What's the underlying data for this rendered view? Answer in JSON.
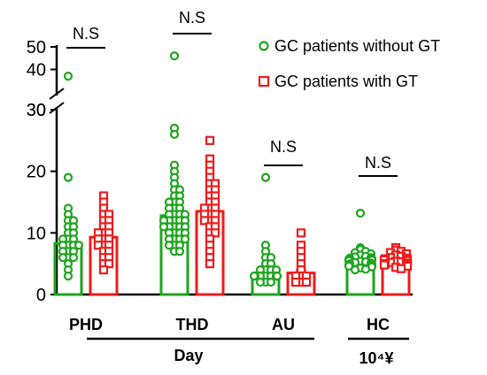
{
  "colors": {
    "without": "#1fa51f",
    "with": "#ee1c1c",
    "axis": "#000000"
  },
  "chart_data": {
    "type": "bar",
    "categories": [
      "PHD",
      "THD",
      "AU",
      "HC"
    ],
    "group_labels": [
      "Day",
      "10⁴¥"
    ],
    "legend": [
      "GC patients without GT",
      "GC patients with GT"
    ],
    "y_ticks_lower": [
      "0",
      "10",
      "20",
      "30"
    ],
    "y_ticks_upper": [
      "30",
      "40",
      "50"
    ],
    "ylim_lower": [
      0,
      30
    ],
    "ylim_upper": [
      30,
      50
    ],
    "axis_break": true,
    "significance": [
      "N.S",
      "N.S",
      "N.S",
      "N.S"
    ],
    "series": [
      {
        "name": "GC patients without GT",
        "means": [
          8.3,
          12.8,
          3.3,
          5.4
        ],
        "points": [
          [
            37,
            19,
            14,
            13,
            12,
            12,
            11,
            11,
            10,
            10,
            9,
            9,
            9,
            8,
            8,
            8,
            8,
            7,
            7,
            7,
            6,
            6,
            6,
            5,
            4,
            3
          ],
          [
            46,
            27,
            26,
            21,
            20,
            19,
            18,
            17,
            17,
            16,
            16,
            15,
            15,
            15,
            14,
            14,
            14,
            13,
            13,
            13,
            13,
            12,
            12,
            12,
            12,
            12,
            11,
            11,
            11,
            11,
            11,
            10,
            10,
            10,
            10,
            9,
            9,
            9,
            9,
            8,
            8,
            8,
            7,
            7
          ],
          [
            19,
            8,
            7,
            6,
            6,
            5,
            5,
            4,
            4,
            4,
            4,
            3,
            3,
            3,
            3,
            3,
            3,
            3,
            3,
            2,
            2,
            2
          ],
          [
            13.2,
            7.6,
            7.3,
            7,
            6.8,
            6.6,
            6.4,
            6.2,
            6.1,
            6,
            5.9,
            5.8,
            5.7,
            5.6,
            5.5,
            5.4,
            5.3,
            5.2,
            5.1,
            5,
            4.9,
            4.8,
            4.7,
            4.6,
            4.5,
            4.3,
            4.1,
            4
          ]
        ]
      },
      {
        "name": "GC patients with GT",
        "means": [
          9.3,
          13.5,
          3.5,
          5.6
        ],
        "points": [
          [
            16,
            15,
            14,
            13,
            13,
            12,
            12,
            11,
            11,
            10,
            10,
            10,
            9,
            9,
            9,
            8,
            8,
            8,
            7,
            7,
            6,
            6,
            5,
            5,
            4
          ],
          [
            25,
            22,
            21,
            20,
            19,
            18,
            18,
            17,
            17,
            16,
            16,
            15,
            15,
            14,
            14,
            14,
            13,
            13,
            13,
            12,
            12,
            12,
            11,
            11,
            10,
            10,
            9,
            8,
            7,
            6,
            5
          ],
          [
            10,
            8,
            7,
            6,
            5,
            4,
            3,
            3,
            3,
            2,
            2,
            2
          ],
          [
            7.6,
            7.2,
            7,
            6.8,
            6.6,
            6.4,
            6.2,
            6,
            5.9,
            5.8,
            5.7,
            5.6,
            5.5,
            5.4,
            5.3,
            5.2,
            5.1,
            5,
            4.9,
            4.8,
            4.6,
            4.4,
            4.2
          ]
        ]
      }
    ]
  }
}
